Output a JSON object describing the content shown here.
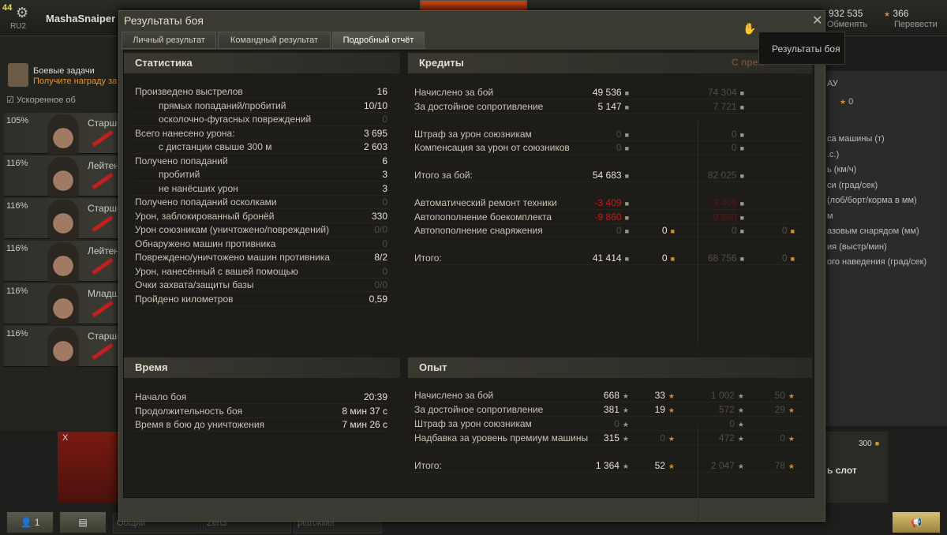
{
  "header": {
    "level": "44",
    "server": "RU2",
    "username": "MashaSnaiper",
    "gold": "932 535",
    "gold_action": "Обменять",
    "free_xp": "366",
    "free_xp_action": "Перевести"
  },
  "sidebar": {
    "quest_title": "Боевые задачи",
    "quest_subtitle": "Получите награду за",
    "accelerate": "Ускоренное об",
    "crew": [
      {
        "pct": "105%",
        "rank": "Старши"
      },
      {
        "pct": "116%",
        "rank": "Лейтен"
      },
      {
        "pct": "116%",
        "rank": "Старши"
      },
      {
        "pct": "116%",
        "rank": "Лейтен"
      },
      {
        "pct": "116%",
        "rank": "Младш"
      },
      {
        "pct": "116%",
        "rank": "Старши"
      }
    ]
  },
  "right_panel": {
    "top": "АУ",
    "stars": "0",
    "specs": [
      "са машины (т)",
      ".с.)",
      "ь (км/ч)",
      "си (град/сек)",
      "(лоб/борт/корма в мм)",
      "м",
      "азовым снарядом (мм)",
      "ия (выстр/мин)",
      "ого наведения (град/сек)"
    ]
  },
  "carousel": {
    "tank_tier": "X",
    "slot_price": "300",
    "slot_label": "ь слот"
  },
  "bottom": {
    "squad_count": "1",
    "channels": [
      "Общий",
      "Zert3",
      "petrokiller"
    ]
  },
  "modal": {
    "title": "Результаты боя",
    "tooltip": "Результаты боя",
    "tabs": [
      "Личный результат",
      "Командный результат",
      "Подробный отчёт"
    ],
    "active_tab": 2,
    "stats": {
      "title": "Статистика",
      "rows": [
        {
          "label": "Произведено выстрелов",
          "value": "16"
        },
        {
          "label": "прямых попаданий/пробитий",
          "value": "10/10",
          "indent": true
        },
        {
          "label": "осколочно-фугасных повреждений",
          "value": "0",
          "indent": true,
          "dim": true
        },
        {
          "label": "Всего нанесено урона:",
          "value": "3 695"
        },
        {
          "label": "с дистанции свыше 300 м",
          "value": "2 603",
          "indent": true
        },
        {
          "label": "Получено попаданий",
          "value": "6"
        },
        {
          "label": "пробитий",
          "value": "3",
          "indent": true
        },
        {
          "label": "не нанёсших урон",
          "value": "3",
          "indent": true
        },
        {
          "label": "Получено попаданий осколками",
          "value": "0",
          "dim": true
        },
        {
          "label": "Урон, заблокированный бронёй",
          "value": "330"
        },
        {
          "label": "Урон союзникам (уничтожено/повреждений)",
          "value": "0/0",
          "dim": true
        },
        {
          "label": "Обнаружено машин противника",
          "value": "0",
          "dim": true
        },
        {
          "label": "Повреждено/уничтожено машин противника",
          "value": "8/2"
        },
        {
          "label": "Урон, нанесённый с вашей помощью",
          "value": "0",
          "dim": true
        },
        {
          "label": "Очки захвата/защиты базы",
          "value": "0/0",
          "dim": true
        },
        {
          "label": "Пройдено километров",
          "value": "0,59"
        }
      ]
    },
    "time": {
      "title": "Время",
      "rows": [
        {
          "label": "Начало боя",
          "value": "20:39"
        },
        {
          "label": "Продолжительность боя",
          "value": "8 мин 37 с"
        },
        {
          "label": "Время в бою до уничтожения",
          "value": "7 мин 26 с"
        }
      ]
    },
    "credits": {
      "title": "Кредиты",
      "premium_header": "С прем",
      "groups": [
        [
          {
            "label": "Начислено за бой",
            "c1": "49 536",
            "c3": "74 304"
          },
          {
            "label": "За достойное сопротивление",
            "c1": "5 147",
            "c3": "7 721"
          }
        ],
        [
          {
            "label": "Штраф за урон союзникам",
            "c1": "0",
            "c3": "0",
            "dim1": true
          },
          {
            "label": "Компенсация за урон от союзников",
            "c1": "0",
            "c3": "0",
            "dim1": true
          }
        ],
        [
          {
            "label": "Итого за бой:",
            "c1": "54 683",
            "c3": "82 025"
          }
        ],
        [
          {
            "label": "Автоматический ремонт техники",
            "c1": "-3 409",
            "c3": "-3 409",
            "red": true
          },
          {
            "label": "Автопополнение боекомплекта",
            "c1": "-9 860",
            "c3": "-9 860",
            "red": true
          },
          {
            "label": "Автопополнение снаряжения",
            "c1": "0",
            "c2": "0",
            "c3": "0",
            "c4": "0",
            "dim1": true
          }
        ],
        [
          {
            "label": "Итого:",
            "c1": "41 414",
            "c2": "0",
            "c3": "68 756",
            "c4": "0"
          }
        ]
      ]
    },
    "experience": {
      "title": "Опыт",
      "groups": [
        [
          {
            "label": "Начислено за бой",
            "c1": "668",
            "c2": "33",
            "c3": "1 002",
            "c4": "50"
          },
          {
            "label": "За достойное сопротивление",
            "c1": "381",
            "c2": "19",
            "c3": "572",
            "c4": "29"
          },
          {
            "label": "Штраф за урон союзникам",
            "c1": "0",
            "c3": "0",
            "dim1": true
          },
          {
            "label": "Надбавка за уровень премиум машины",
            "c1": "315",
            "c2": "0",
            "c3": "472",
            "c4": "0",
            "dim2": true
          }
        ],
        [
          {
            "label": "Итого:",
            "c1": "1 364",
            "c2": "52",
            "c3": "2 047",
            "c4": "78"
          }
        ]
      ]
    }
  },
  "icons": {
    "credits": "silver-coin-icon",
    "gold": "gold-coin-icon",
    "xp": "star-icon",
    "free_xp": "gold-star-icon"
  },
  "colors": {
    "accent": "#e0962a",
    "negative": "#c91a1a",
    "panel": "#1d1c19"
  }
}
